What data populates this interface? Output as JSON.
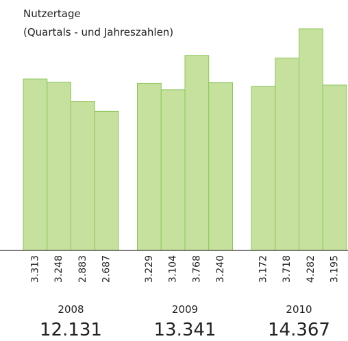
{
  "chart_data": {
    "type": "grouped-bar",
    "title": "Nutzertage",
    "subtitle": "(Quartals - und Jahreszahlen)",
    "color": "#c6e19e",
    "edge_color": "#8cc45a",
    "groups": [
      {
        "name": "2008",
        "values": [
          3313,
          3248,
          2883,
          2687
        ],
        "value_labels": [
          "3.313",
          "3.248",
          "2.883",
          "2.687"
        ],
        "total": 12131,
        "total_label": "12.131"
      },
      {
        "name": "2009",
        "values": [
          3229,
          3104,
          3768,
          3240
        ],
        "value_labels": [
          "3.229",
          "3.104",
          "3.768",
          "3.240"
        ],
        "total": 13341,
        "total_label": "13.341"
      },
      {
        "name": "2010",
        "values": [
          3172,
          3718,
          4282,
          3195
        ],
        "value_labels": [
          "3.172",
          "3.718",
          "4.282",
          "3.195"
        ],
        "total": 14367,
        "total_label": "14.367"
      }
    ]
  }
}
